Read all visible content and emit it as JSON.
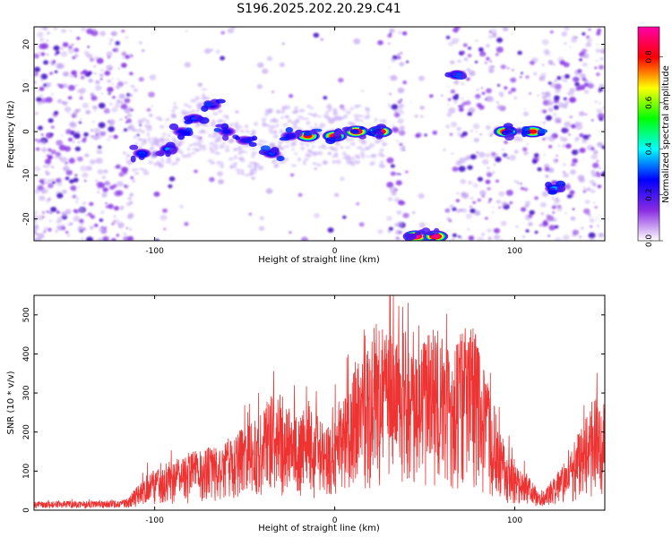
{
  "title": "S196.2025.202.20.29.C41",
  "chart_data": [
    {
      "type": "heatmap",
      "xlabel": "Height of straight line (km)",
      "ylabel": "Frequency (Hz)",
      "xlim": [
        -167,
        150
      ],
      "ylim": [
        -25,
        24
      ],
      "xticks": [
        -100,
        0,
        100
      ],
      "yticks": [
        -20,
        -10,
        0,
        10,
        20
      ],
      "colorbar": {
        "label": "Normalized spectral amplitude",
        "range": [
          0,
          0.93
        ],
        "ticks": [
          0,
          0.2,
          0.4,
          0.6,
          0.8
        ],
        "colormap": [
          "#ffffff",
          "#8a2be2",
          "#0000ff",
          "#00ffff",
          "#00ff00",
          "#ffff00",
          "#ff0000",
          "#ff00aa"
        ]
      },
      "features": [
        {
          "x": -107,
          "y": -5,
          "amp": 0.25
        },
        {
          "x": -92,
          "y": -4,
          "amp": 0.3
        },
        {
          "x": -85,
          "y": 0,
          "amp": 0.2
        },
        {
          "x": -78,
          "y": 3,
          "amp": 0.25
        },
        {
          "x": -68,
          "y": 6,
          "amp": 0.2
        },
        {
          "x": -60,
          "y": 0,
          "amp": 0.2
        },
        {
          "x": -50,
          "y": -2,
          "amp": 0.18
        },
        {
          "x": -35,
          "y": -5,
          "amp": 0.25
        },
        {
          "x": -25,
          "y": -1,
          "amp": 0.2
        },
        {
          "x": -15,
          "y": -1,
          "amp": 0.75
        },
        {
          "x": 0,
          "y": -1,
          "amp": 0.8
        },
        {
          "x": 12,
          "y": 0,
          "amp": 0.85
        },
        {
          "x": 25,
          "y": 0,
          "amp": 0.85
        },
        {
          "x": 45,
          "y": -24,
          "amp": 0.9
        },
        {
          "x": 56,
          "y": -24,
          "amp": 0.85
        },
        {
          "x": 68,
          "y": 13,
          "amp": 0.3
        },
        {
          "x": 95,
          "y": 0,
          "amp": 0.8
        },
        {
          "x": 110,
          "y": 0,
          "amp": 0.75
        },
        {
          "x": 122,
          "y": -13,
          "amp": 0.3
        }
      ]
    },
    {
      "type": "line",
      "xlabel": "Height of straight line (km)",
      "ylabel": "SNR (10 * v/v)",
      "xlim": [
        -167,
        150
      ],
      "ylim": [
        0,
        550
      ],
      "xticks": [
        -100,
        0,
        100
      ],
      "yticks": [
        0,
        100,
        200,
        300,
        400,
        500
      ],
      "color": "#ee3333",
      "series": [
        {
          "x": [
            -167,
            -150,
            -130,
            -115,
            -105,
            -95,
            -85,
            -75,
            -65,
            -55,
            -45,
            -35,
            -25,
            -15,
            -5,
            5,
            15,
            25,
            35,
            45,
            55,
            65,
            75,
            85,
            95,
            105,
            115,
            125,
            135,
            145,
            150
          ],
          "values": [
            15,
            18,
            16,
            20,
            70,
            90,
            110,
            120,
            130,
            150,
            180,
            230,
            200,
            220,
            160,
            220,
            320,
            380,
            330,
            300,
            380,
            300,
            400,
            250,
            120,
            80,
            30,
            80,
            150,
            220,
            210
          ]
        }
      ]
    }
  ]
}
